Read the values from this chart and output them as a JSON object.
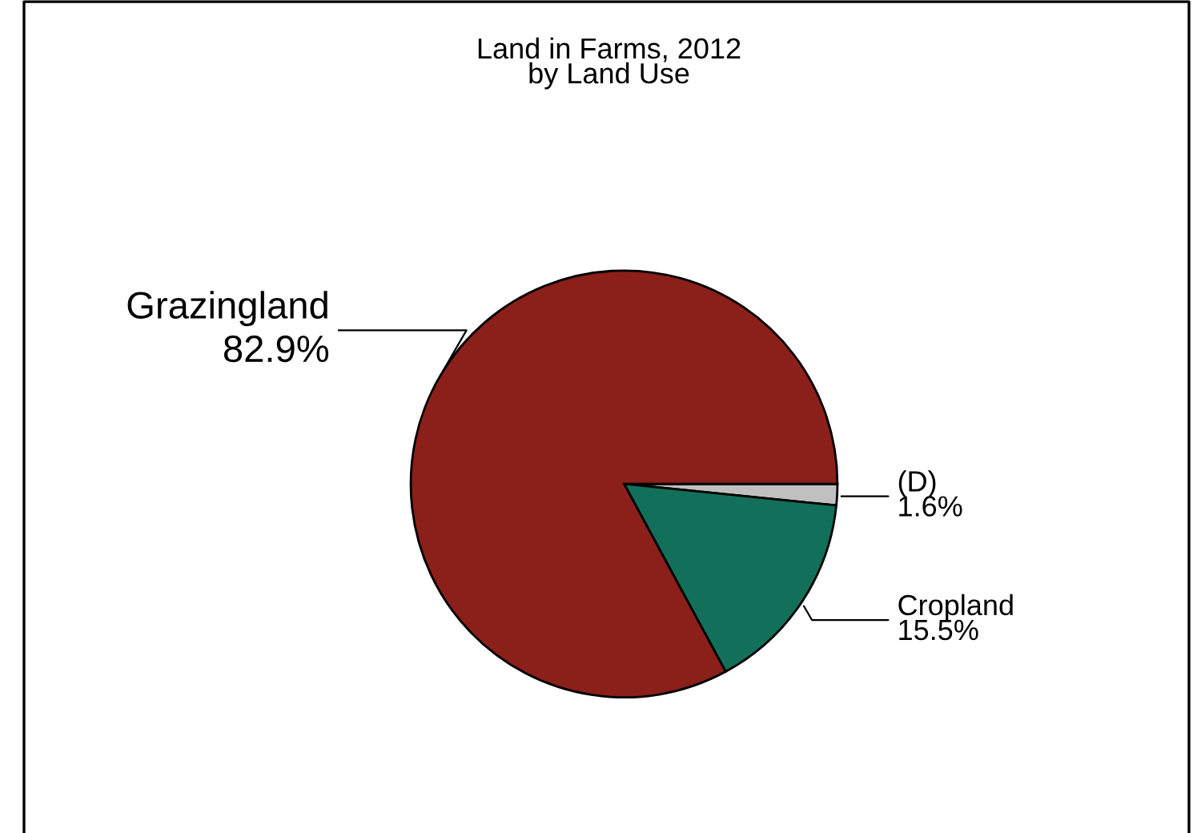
{
  "chart_data": {
    "type": "pie",
    "title": "Land in Farms, 2012\nby Land Use",
    "categories": [
      "(D)",
      "Cropland",
      "Grazingland"
    ],
    "values": [
      1.6,
      15.5,
      82.9
    ],
    "colors": [
      "#c0c0c0",
      "#12705a",
      "#8b1f1a"
    ],
    "value_labels": [
      "1.6%",
      "15.5%",
      "82.9%"
    ],
    "legend": false
  }
}
